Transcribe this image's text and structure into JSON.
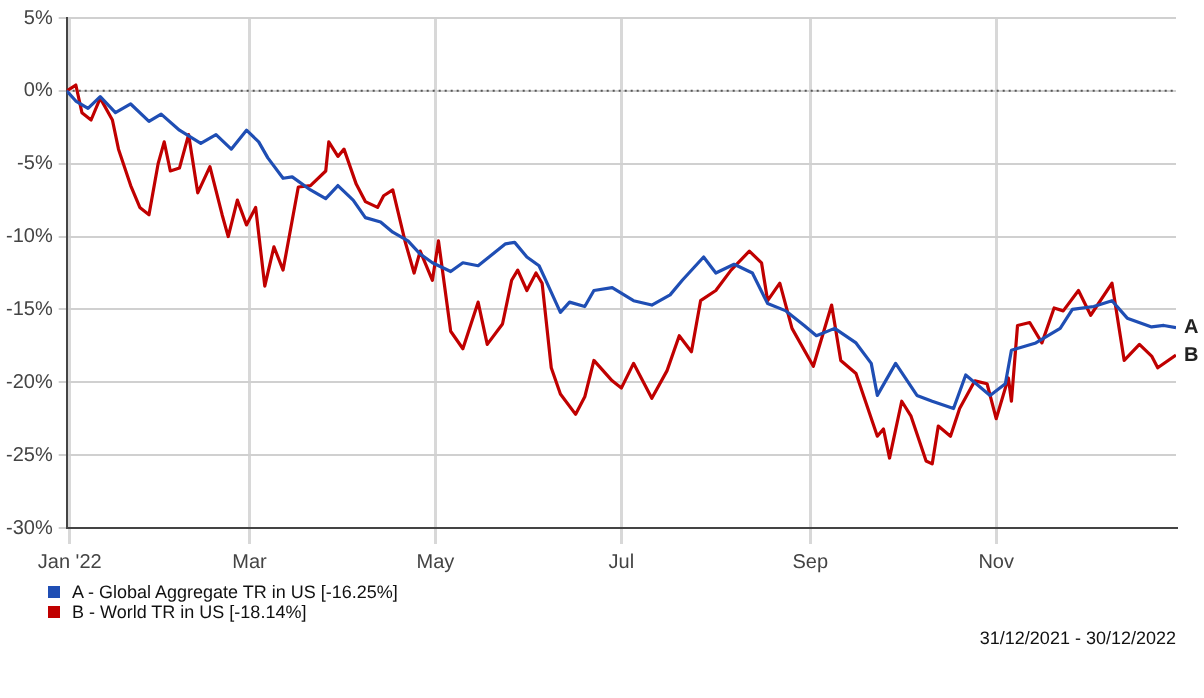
{
  "chart_data": {
    "type": "line",
    "xlim": [
      "2021-12-31",
      "2022-12-30"
    ],
    "xticks": [
      {
        "value": "2022-01-01",
        "label": "Jan '22"
      },
      {
        "value": "2022-03-01",
        "label": "Mar"
      },
      {
        "value": "2022-05-01",
        "label": "May"
      },
      {
        "value": "2022-07-01",
        "label": "Jul"
      },
      {
        "value": "2022-09-01",
        "label": "Sep"
      },
      {
        "value": "2022-11-01",
        "label": "Nov"
      }
    ],
    "ylim": [
      -30,
      5
    ],
    "yticks": [
      {
        "value": 5,
        "label": "5%"
      },
      {
        "value": 0,
        "label": "0%"
      },
      {
        "value": -5,
        "label": "-5%"
      },
      {
        "value": -10,
        "label": "-10%"
      },
      {
        "value": -15,
        "label": "-15%"
      },
      {
        "value": -20,
        "label": "-20%"
      },
      {
        "value": -25,
        "label": "-25%"
      },
      {
        "value": -30,
        "label": "-30%"
      }
    ],
    "grid": true,
    "legend": "bottom left",
    "ref_lines": [
      {
        "axis": "y",
        "value": 0,
        "color": "#555555",
        "line_style": "dotted"
      }
    ],
    "annotations": [
      {
        "text": "A",
        "x": "2022-12-30",
        "y": -16.25
      },
      {
        "text": "B",
        "x": "2022-12-30",
        "y": -18.14
      },
      "31/12/2021 - 30/12/2022"
    ],
    "series": [
      {
        "name": "A - Global Aggregate TR in US [-16.25%]",
        "color": "#1f4eb4",
        "x": [
          "2021-12-31",
          "2022-01-03",
          "2022-01-07",
          "2022-01-11",
          "2022-01-16",
          "2022-01-21",
          "2022-01-27",
          "2022-01-31",
          "2022-02-06",
          "2022-02-13",
          "2022-02-18",
          "2022-02-23",
          "2022-02-28",
          "2022-03-04",
          "2022-03-07",
          "2022-03-12",
          "2022-03-15",
          "2022-03-21",
          "2022-03-26",
          "2022-03-30",
          "2022-04-04",
          "2022-04-08",
          "2022-04-13",
          "2022-04-17",
          "2022-04-22",
          "2022-04-26",
          "2022-04-30",
          "2022-05-06",
          "2022-05-10",
          "2022-05-15",
          "2022-05-24",
          "2022-05-27",
          "2022-05-31",
          "2022-06-04",
          "2022-06-06",
          "2022-06-11",
          "2022-06-14",
          "2022-06-19",
          "2022-06-22",
          "2022-06-28",
          "2022-07-05",
          "2022-07-11",
          "2022-07-17",
          "2022-07-21",
          "2022-07-28",
          "2022-08-01",
          "2022-08-07",
          "2022-08-13",
          "2022-08-18",
          "2022-08-24",
          "2022-08-30",
          "2022-09-03",
          "2022-09-09",
          "2022-09-16",
          "2022-09-21",
          "2022-09-23",
          "2022-09-29",
          "2022-10-06",
          "2022-10-11",
          "2022-10-18",
          "2022-10-22",
          "2022-10-30",
          "2022-11-04",
          "2022-11-06",
          "2022-11-14",
          "2022-11-22",
          "2022-11-26",
          "2022-12-03",
          "2022-12-09",
          "2022-12-14",
          "2022-12-22",
          "2022-12-26",
          "2022-12-30"
        ],
        "values": [
          0,
          -0.7,
          -1.2,
          -0.4,
          -1.5,
          -0.9,
          -2.1,
          -1.6,
          -2.7,
          -3.6,
          -3.0,
          -4.0,
          -2.7,
          -3.5,
          -4.6,
          -6.0,
          -5.9,
          -6.8,
          -7.4,
          -6.5,
          -7.5,
          -8.7,
          -9.0,
          -9.7,
          -10.3,
          -11.2,
          -11.8,
          -12.4,
          -11.8,
          -12.0,
          -10.5,
          -10.4,
          -11.4,
          -12.0,
          -12.9,
          -15.2,
          -14.5,
          -14.8,
          -13.7,
          -13.5,
          -14.4,
          -14.7,
          -14.0,
          -13.0,
          -11.4,
          -12.5,
          -11.9,
          -12.5,
          -14.6,
          -15.1,
          -16.1,
          -16.8,
          -16.3,
          -17.3,
          -18.7,
          -20.9,
          -18.7,
          -20.9,
          -21.3,
          -21.8,
          -19.5,
          -20.9,
          -20.1,
          -17.8,
          -17.3,
          -16.3,
          -15.0,
          -14.8,
          -14.4,
          -15.6,
          -16.2,
          -16.1,
          -16.25
        ]
      },
      {
        "name": "B - World TR in US [-18.14%]",
        "color": "#c00000",
        "x": [
          "2021-12-31",
          "2022-01-03",
          "2022-01-05",
          "2022-01-08",
          "2022-01-11",
          "2022-01-15",
          "2022-01-17",
          "2022-01-21",
          "2022-01-24",
          "2022-01-27",
          "2022-01-30",
          "2022-02-01",
          "2022-02-03",
          "2022-02-06",
          "2022-02-09",
          "2022-02-12",
          "2022-02-16",
          "2022-02-20",
          "2022-02-22",
          "2022-02-25",
          "2022-02-28",
          "2022-03-03",
          "2022-03-06",
          "2022-03-09",
          "2022-03-12",
          "2022-03-17",
          "2022-03-21",
          "2022-03-26",
          "2022-03-27",
          "2022-03-30",
          "2022-04-01",
          "2022-04-05",
          "2022-04-08",
          "2022-04-12",
          "2022-04-14",
          "2022-04-17",
          "2022-04-21",
          "2022-04-24",
          "2022-04-26",
          "2022-04-30",
          "2022-05-02",
          "2022-05-06",
          "2022-05-10",
          "2022-05-15",
          "2022-05-18",
          "2022-05-23",
          "2022-05-26",
          "2022-05-28",
          "2022-05-31",
          "2022-06-03",
          "2022-06-05",
          "2022-06-08",
          "2022-06-11",
          "2022-06-16",
          "2022-06-19",
          "2022-06-22",
          "2022-06-28",
          "2022-07-01",
          "2022-07-05",
          "2022-07-11",
          "2022-07-16",
          "2022-07-20",
          "2022-07-24",
          "2022-07-27",
          "2022-08-01",
          "2022-08-06",
          "2022-08-12",
          "2022-08-16",
          "2022-08-18",
          "2022-08-22",
          "2022-08-26",
          "2022-09-02",
          "2022-09-08",
          "2022-09-11",
          "2022-09-16",
          "2022-09-23",
          "2022-09-25",
          "2022-09-27",
          "2022-10-01",
          "2022-10-04",
          "2022-10-09",
          "2022-10-11",
          "2022-10-13",
          "2022-10-17",
          "2022-10-20",
          "2022-10-25",
          "2022-10-29",
          "2022-11-01",
          "2022-11-05",
          "2022-11-06",
          "2022-11-08",
          "2022-11-12",
          "2022-11-16",
          "2022-11-20",
          "2022-11-23",
          "2022-11-28",
          "2022-12-02",
          "2022-12-09",
          "2022-12-13",
          "2022-12-18",
          "2022-12-22",
          "2022-12-24",
          "2022-12-30"
        ],
        "values": [
          0,
          0.4,
          -1.5,
          -2.0,
          -0.5,
          -2.0,
          -4.0,
          -6.5,
          -8.0,
          -8.5,
          -5.0,
          -3.5,
          -5.5,
          -5.3,
          -3.0,
          -7.0,
          -5.2,
          -8.5,
          -10.0,
          -7.5,
          -9.2,
          -8.0,
          -13.4,
          -10.7,
          -12.3,
          -6.6,
          -6.5,
          -5.5,
          -3.5,
          -4.5,
          -4.0,
          -6.4,
          -7.6,
          -8.0,
          -7.2,
          -6.8,
          -10.3,
          -12.5,
          -11.0,
          -13.0,
          -10.3,
          -16.5,
          -17.7,
          -14.5,
          -17.4,
          -16.0,
          -13.0,
          -12.3,
          -13.7,
          -12.5,
          -13.2,
          -19.0,
          -20.8,
          -22.2,
          -21.0,
          -18.5,
          -19.9,
          -20.4,
          -18.7,
          -21.1,
          -19.2,
          -16.8,
          -17.9,
          -14.4,
          -13.7,
          -12.3,
          -11.0,
          -11.8,
          -14.4,
          -13.2,
          -16.3,
          -18.9,
          -14.7,
          -18.5,
          -19.4,
          -23.7,
          -23.2,
          -25.2,
          -21.3,
          -22.3,
          -25.4,
          -25.6,
          -23.0,
          -23.7,
          -21.8,
          -19.9,
          -20.1,
          -22.5,
          -19.7,
          -21.3,
          -16.1,
          -15.9,
          -17.3,
          -14.9,
          -15.1,
          -13.7,
          -15.4,
          -13.2,
          -18.5,
          -17.4,
          -18.2,
          -19.0,
          -18.14
        ]
      }
    ]
  }
}
